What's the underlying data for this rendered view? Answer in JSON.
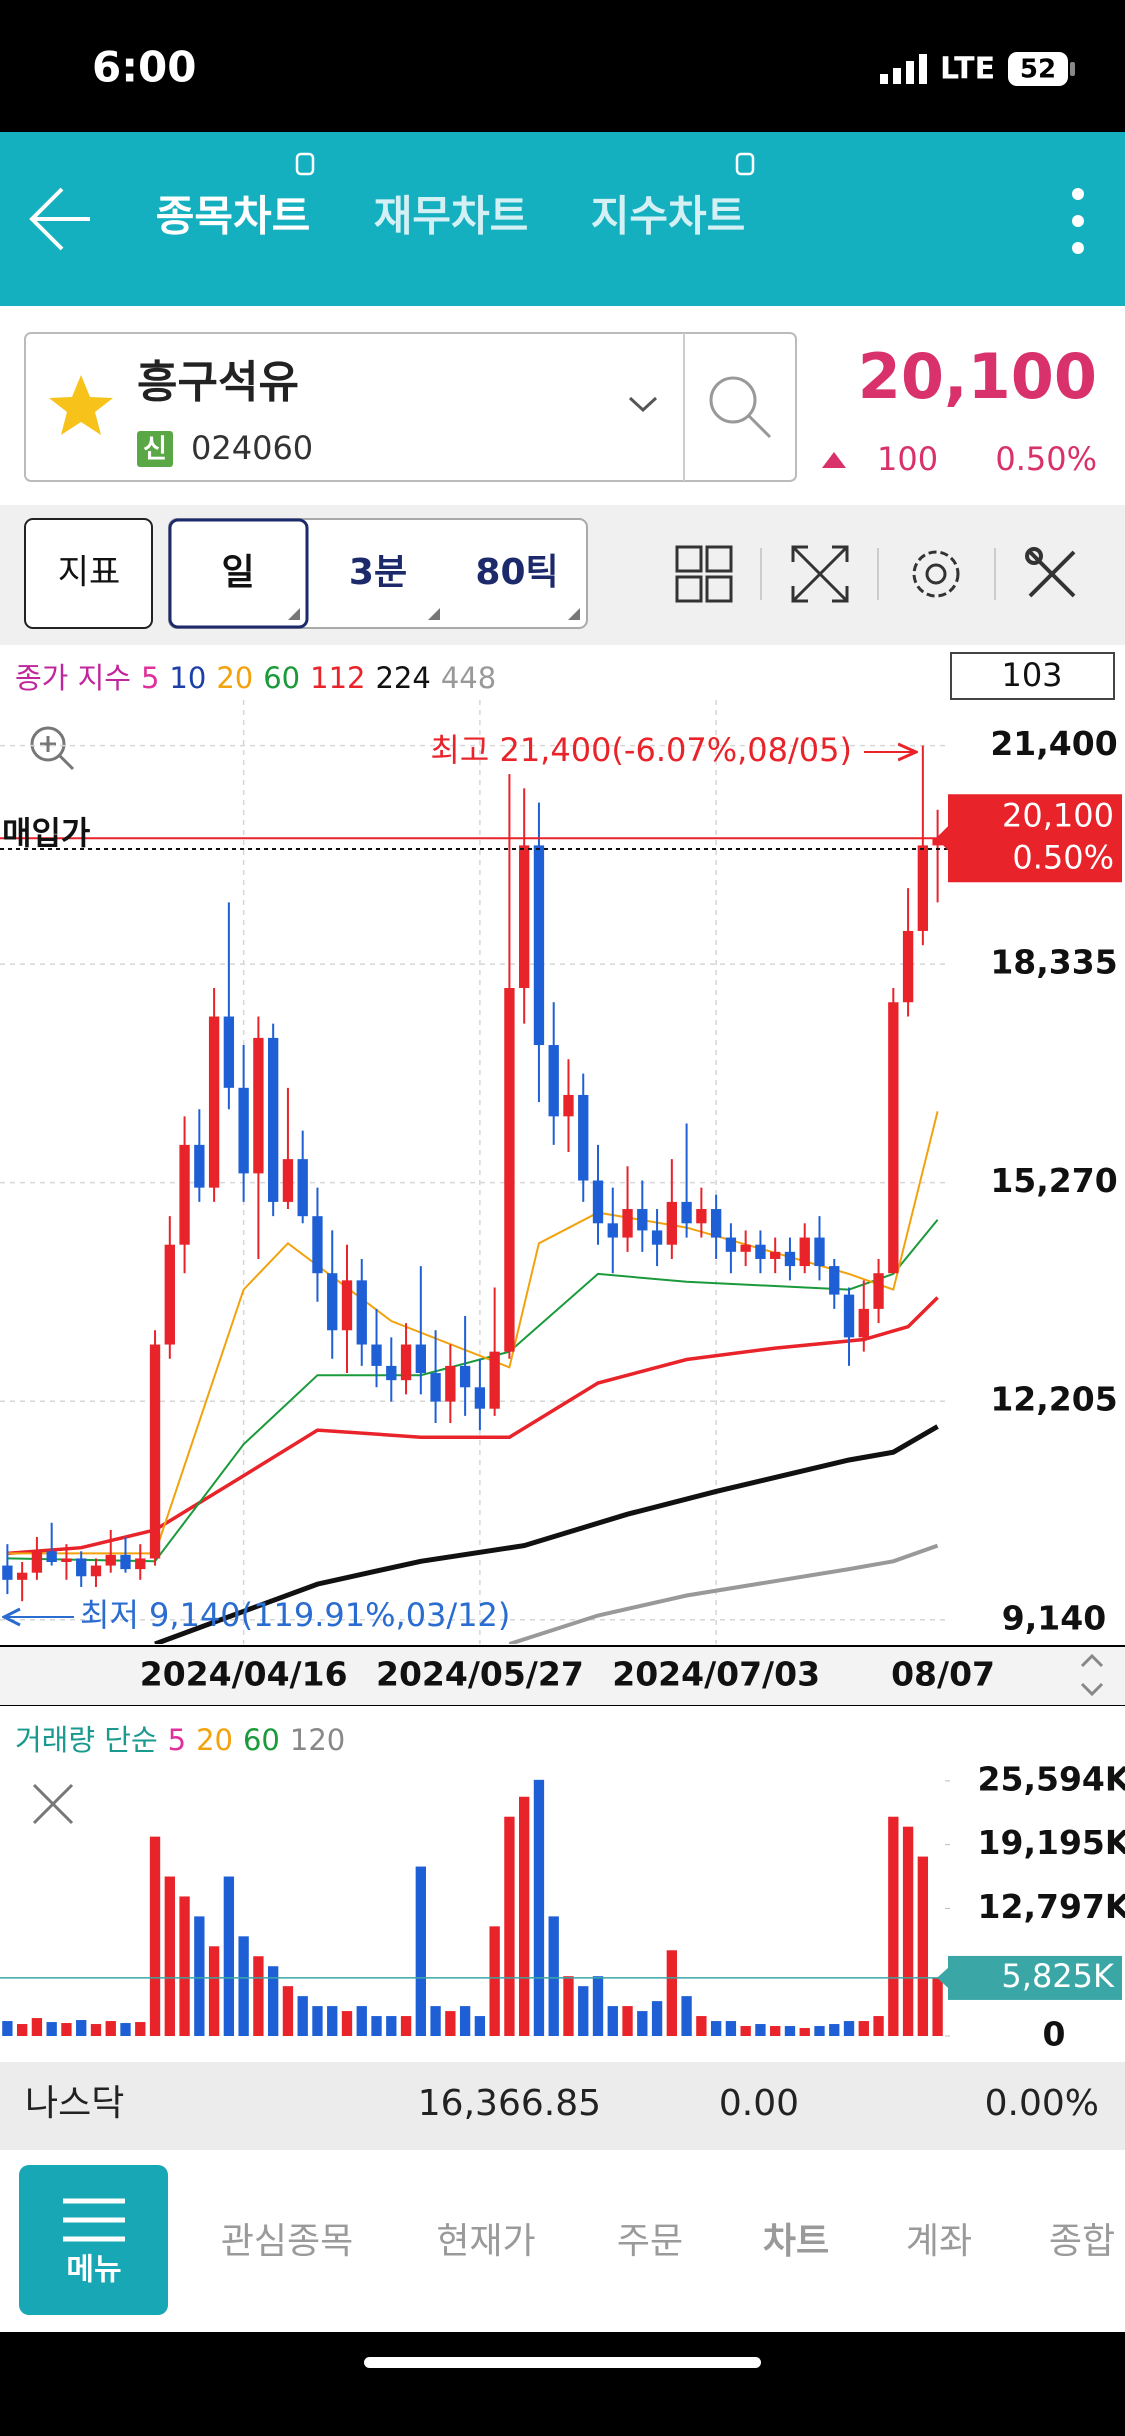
{
  "status_bar": {
    "time": "6:00",
    "network": "LTE",
    "battery": "52"
  },
  "header": {
    "tabs": [
      "종목차트",
      "재무차트",
      "지수차트"
    ]
  },
  "stock": {
    "name": "흥구석유",
    "badge": "신",
    "code": "024060",
    "price": "20,100",
    "change": "100",
    "change_pct": "0.50%"
  },
  "toolbar": {
    "indicator": "지표",
    "periods": [
      "일",
      "3분",
      "80틱"
    ]
  },
  "price_chart": {
    "type": "candlestick",
    "legend_title": "종가 지수",
    "legend": [
      {
        "name": "5",
        "color": "#e0309c"
      },
      {
        "name": "10",
        "color": "#1c3fa8"
      },
      {
        "name": "20",
        "color": "#f2a20c"
      },
      {
        "name": "60",
        "color": "#1a9a3a"
      },
      {
        "name": "112",
        "color": "#e8232a"
      },
      {
        "name": "224",
        "color": "#111111"
      },
      {
        "name": "448",
        "color": "#999999"
      }
    ],
    "count_box": "103",
    "up_color": "#e8232a",
    "down_color": "#1f5fd6",
    "ylim": [
      8800,
      22600
    ],
    "yticks": [
      {
        "value": 21400,
        "label": "21,400"
      },
      {
        "value": 18335,
        "label": "18,335"
      },
      {
        "value": 15270,
        "label": "15,270"
      },
      {
        "value": 12205,
        "label": "12,205"
      },
      {
        "value": 9140,
        "label": "9,140"
      }
    ],
    "grid": true,
    "categories": [
      null,
      null,
      null,
      null,
      null,
      null,
      null,
      null,
      null,
      null,
      null,
      null,
      null,
      null,
      null,
      null,
      "2024/04/16",
      null,
      null,
      null,
      null,
      null,
      null,
      null,
      null,
      null,
      null,
      null,
      null,
      null,
      null,
      null,
      "2024/05/27",
      null,
      null,
      null,
      null,
      null,
      null,
      null,
      null,
      null,
      null,
      null,
      null,
      null,
      null,
      null,
      "2024/07/03",
      null,
      null,
      null,
      null,
      null,
      null,
      null,
      null,
      null,
      null,
      null,
      null,
      null,
      null,
      "08/07"
    ],
    "candles": [
      [
        9900,
        10200,
        9500,
        9700
      ],
      [
        9700,
        9950,
        9400,
        9800
      ],
      [
        9800,
        10300,
        9700,
        10100
      ],
      [
        10100,
        10500,
        9900,
        9950
      ],
      [
        9950,
        10200,
        9700,
        10000
      ],
      [
        10000,
        10100,
        9600,
        9750
      ],
      [
        9750,
        10000,
        9600,
        9900
      ],
      [
        9900,
        10400,
        9800,
        10050
      ],
      [
        10050,
        10300,
        9800,
        9850
      ],
      [
        9850,
        10200,
        9700,
        10000
      ],
      [
        10000,
        13200,
        9900,
        13000
      ],
      [
        13000,
        14800,
        12800,
        14400
      ],
      [
        14400,
        16200,
        14000,
        15800
      ],
      [
        15800,
        16300,
        15000,
        15200
      ],
      [
        15200,
        18000,
        15000,
        17600
      ],
      [
        17600,
        19200,
        16300,
        16600
      ],
      [
        16600,
        17200,
        15000,
        15400
      ],
      [
        15400,
        17600,
        14200,
        17300
      ],
      [
        17300,
        17500,
        14800,
        15000
      ],
      [
        15000,
        16600,
        14900,
        15600
      ],
      [
        15600,
        16000,
        14700,
        14800
      ],
      [
        14800,
        15200,
        13600,
        14000
      ],
      [
        14000,
        14600,
        12800,
        13200
      ],
      [
        13200,
        14400,
        12600,
        13900
      ],
      [
        13900,
        14200,
        12700,
        13000
      ],
      [
        13000,
        13500,
        12400,
        12700
      ],
      [
        12700,
        13100,
        12200,
        12500
      ],
      [
        12500,
        13300,
        12300,
        13000
      ],
      [
        13000,
        14100,
        12300,
        12600
      ],
      [
        12600,
        13200,
        11900,
        12200
      ],
      [
        12200,
        13000,
        11900,
        12700
      ],
      [
        12700,
        13400,
        12000,
        12400
      ],
      [
        12400,
        12800,
        11800,
        12100
      ],
      [
        12100,
        13800,
        12000,
        12900
      ],
      [
        12900,
        21000,
        12800,
        18000
      ],
      [
        18000,
        20800,
        17500,
        20000
      ],
      [
        20000,
        20600,
        16400,
        17200
      ],
      [
        17200,
        17800,
        15800,
        16200
      ],
      [
        16200,
        17000,
        15700,
        16500
      ],
      [
        16500,
        16800,
        15000,
        15300
      ],
      [
        15300,
        15800,
        14400,
        14700
      ],
      [
        14700,
        15200,
        14000,
        14500
      ],
      [
        14500,
        15500,
        14300,
        14900
      ],
      [
        14900,
        15300,
        14300,
        14600
      ],
      [
        14600,
        14900,
        14100,
        14400
      ],
      [
        14400,
        15600,
        14200,
        15000
      ],
      [
        15000,
        16100,
        14500,
        14700
      ],
      [
        14700,
        15200,
        14500,
        14900
      ],
      [
        14900,
        15100,
        14200,
        14500
      ],
      [
        14500,
        14700,
        14000,
        14300
      ],
      [
        14300,
        14600,
        14100,
        14400
      ],
      [
        14400,
        14600,
        14000,
        14200
      ],
      [
        14200,
        14500,
        14000,
        14300
      ],
      [
        14300,
        14500,
        13900,
        14100
      ],
      [
        14100,
        14700,
        14000,
        14500
      ],
      [
        14500,
        14800,
        13900,
        14100
      ],
      [
        14100,
        14200,
        13500,
        13700
      ],
      [
        13700,
        13800,
        12700,
        13100
      ],
      [
        13100,
        13900,
        12900,
        13500
      ],
      [
        13500,
        14200,
        13300,
        14000
      ],
      [
        14000,
        18000,
        14000,
        17800
      ],
      [
        17800,
        19400,
        17600,
        18800
      ],
      [
        18800,
        21400,
        18600,
        20000
      ],
      [
        20000,
        20500,
        19200,
        20100
      ]
    ],
    "moving_averages": [
      {
        "name": "448",
        "color": "#999999",
        "x": [
          34,
          40,
          46,
          57,
          60,
          63
        ],
        "values": [
          8800,
          9200,
          9480,
          9850,
          9960,
          10180
        ]
      },
      {
        "name": "224",
        "color": "#111111",
        "x": [
          10,
          21,
          28,
          35,
          42,
          48,
          57,
          60,
          63
        ],
        "values": [
          8800,
          9640,
          9960,
          10180,
          10620,
          10940,
          11380,
          11490,
          11850
        ]
      },
      {
        "name": "112",
        "color": "#e8232a",
        "x": [
          0,
          5,
          10,
          16,
          21,
          28,
          34,
          40,
          46,
          52,
          58,
          61,
          63
        ],
        "values": [
          10070,
          10150,
          10400,
          11160,
          11800,
          11700,
          11700,
          12460,
          12790,
          12950,
          13070,
          13250,
          13660
        ]
      },
      {
        "name": "60",
        "color": "#1a9a3a",
        "x": [
          0,
          10,
          16,
          21,
          28,
          34,
          40,
          46,
          57,
          60,
          63
        ],
        "values": [
          10000,
          9960,
          11600,
          12570,
          12570,
          12900,
          13990,
          13880,
          13770,
          13990,
          14750
        ]
      },
      {
        "name": "20",
        "color": "#f2a20c",
        "x": [
          0,
          10,
          16,
          19,
          26,
          34,
          36,
          40,
          46,
          57,
          60,
          63
        ],
        "values": [
          10070,
          10070,
          13770,
          14420,
          13330,
          12680,
          14420,
          14850,
          14640,
          13990,
          13770,
          16270
        ]
      }
    ],
    "high_note": "최고 21,400(-6.07%,08/05)",
    "low_note": "최저 9,140(119.91%,03/12)",
    "purchase": {
      "label": "매입가",
      "value": 19950
    },
    "price_tag": {
      "value": 20100,
      "label": "20,100",
      "pct": "0.50%"
    }
  },
  "volume_chart": {
    "type": "bar",
    "legend_title": "거래량 단순",
    "legend": [
      {
        "name": "5",
        "color": "#e0309c"
      },
      {
        "name": "20",
        "color": "#f2a20c"
      },
      {
        "name": "60",
        "color": "#1a9a3a"
      },
      {
        "name": "120",
        "color": "#888888"
      }
    ],
    "ylim": [
      0,
      31200
    ],
    "yticks": [
      {
        "value": 25594,
        "label": "25,594K"
      },
      {
        "value": 19195,
        "label": "19,195K"
      },
      {
        "value": 12797,
        "label": "12,797K"
      },
      0
    ],
    "values": [
      1500,
      1200,
      1800,
      1400,
      1300,
      1600,
      1200,
      1500,
      1300,
      1400,
      20000,
      16000,
      14000,
      12000,
      9000,
      16000,
      10000,
      8000,
      7000,
      5000,
      4000,
      3000,
      3000,
      2500,
      3000,
      2000,
      2000,
      2000,
      17000,
      3000,
      2500,
      3000,
      2000,
      11000,
      22000,
      24000,
      25700,
      12000,
      6000,
      5000,
      6000,
      3000,
      3000,
      2500,
      3500,
      8600,
      4000,
      2000,
      1500,
      1500,
      1000,
      1200,
      1000,
      1000,
      800,
      1000,
      1200,
      1500,
      1500,
      2000,
      22000,
      21000,
      18000,
      5825
    ],
    "current_tag": {
      "value": 5825,
      "label": "5,825K"
    }
  },
  "index_bar": {
    "name": "나스닥",
    "value": "16,366.85",
    "change": "0.00",
    "change_pct": "0.00%"
  },
  "nav": {
    "menu": "메뉴",
    "tabs": [
      "관심종목",
      "현재가",
      "주문",
      "차트",
      "계좌",
      "종합"
    ],
    "active": 3
  }
}
